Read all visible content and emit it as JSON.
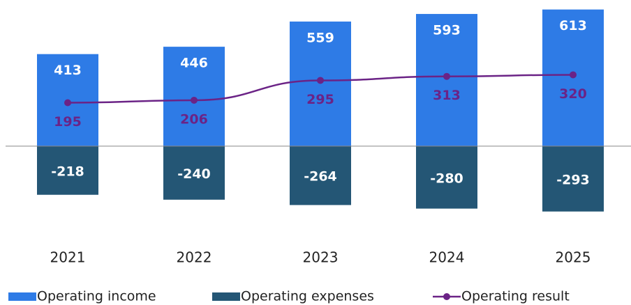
{
  "chart_data": {
    "type": "bar-line",
    "categories": [
      "2021",
      "2022",
      "2023",
      "2024",
      "2025"
    ],
    "series": [
      {
        "name": "Operating income",
        "type": "bar",
        "color": "#2e7be6",
        "values": [
          413,
          446,
          559,
          593,
          613
        ]
      },
      {
        "name": "Operating expenses",
        "type": "bar",
        "color": "#245675",
        "values": [
          -218,
          -240,
          -264,
          -280,
          -293
        ]
      },
      {
        "name": "Operating result",
        "type": "line",
        "color": "#6b2386",
        "values": [
          195,
          206,
          295,
          313,
          320
        ]
      }
    ],
    "ylim": [
      -400,
      640
    ],
    "legend": "bottom"
  }
}
